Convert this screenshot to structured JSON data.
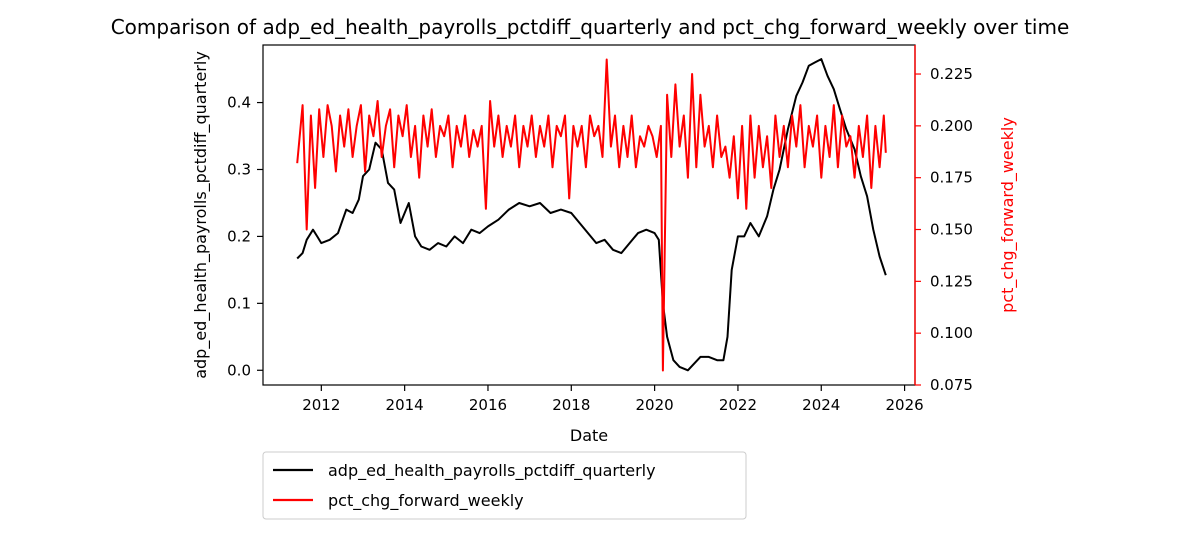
{
  "chart_data": {
    "type": "line",
    "title": "Comparison of adp_ed_health_payrolls_pctdiff_quarterly and pct_chg_forward_weekly over time",
    "xlabel": "Date",
    "ylabel_left": "adp_ed_health_payrolls_pctdiff_quarterly",
    "ylabel_right": "pct_chg_forward_weekly",
    "xlim": [
      2010.6,
      2026.25
    ],
    "ylim_left": [
      -0.022,
      0.486
    ],
    "ylim_right": [
      0.075,
      0.239
    ],
    "x_ticks": [
      2012,
      2014,
      2016,
      2018,
      2020,
      2022,
      2024,
      2026
    ],
    "x_tick_labels": [
      "2012",
      "2014",
      "2016",
      "2018",
      "2020",
      "2022",
      "2024",
      "2026"
    ],
    "y_ticks_left": [
      0.0,
      0.1,
      0.2,
      0.3,
      0.4
    ],
    "y_tick_labels_left": [
      "0.0",
      "0.1",
      "0.2",
      "0.3",
      "0.4"
    ],
    "y_ticks_right": [
      0.075,
      0.1,
      0.125,
      0.15,
      0.175,
      0.2,
      0.225
    ],
    "y_tick_labels_right": [
      "0.075",
      "0.100",
      "0.125",
      "0.150",
      "0.175",
      "0.200",
      "0.225"
    ],
    "legend_placement": "below-left",
    "colors": {
      "left_series": "#000000",
      "right_series": "#ff0000"
    },
    "series": [
      {
        "name": "adp_ed_health_payrolls_pctdiff_quarterly",
        "axis": "left",
        "color": "#000000",
        "x": [
          2011.42,
          2011.55,
          2011.65,
          2011.8,
          2011.9,
          2012.0,
          2012.2,
          2012.4,
          2012.6,
          2012.75,
          2012.9,
          2013.0,
          2013.15,
          2013.3,
          2013.45,
          2013.6,
          2013.75,
          2013.9,
          2014.1,
          2014.25,
          2014.4,
          2014.6,
          2014.8,
          2015.0,
          2015.2,
          2015.4,
          2015.6,
          2015.8,
          2016.0,
          2016.25,
          2016.5,
          2016.75,
          2017.0,
          2017.25,
          2017.5,
          2017.75,
          2018.0,
          2018.2,
          2018.4,
          2018.6,
          2018.8,
          2019.0,
          2019.2,
          2019.4,
          2019.6,
          2019.8,
          2020.0,
          2020.1,
          2020.2,
          2020.3,
          2020.45,
          2020.6,
          2020.8,
          2020.95,
          2021.1,
          2021.3,
          2021.5,
          2021.65,
          2021.75,
          2021.85,
          2022.0,
          2022.15,
          2022.3,
          2022.5,
          2022.7,
          2022.85,
          2023.0,
          2023.2,
          2023.4,
          2023.55,
          2023.7,
          2023.85,
          2024.0,
          2024.15,
          2024.3,
          2024.45,
          2024.6,
          2024.8,
          2024.95,
          2025.1,
          2025.25,
          2025.4,
          2025.55
        ],
        "values": [
          0.167,
          0.175,
          0.195,
          0.21,
          0.2,
          0.19,
          0.195,
          0.205,
          0.24,
          0.235,
          0.255,
          0.29,
          0.3,
          0.34,
          0.33,
          0.28,
          0.27,
          0.22,
          0.25,
          0.2,
          0.185,
          0.18,
          0.19,
          0.185,
          0.2,
          0.19,
          0.21,
          0.205,
          0.215,
          0.225,
          0.24,
          0.25,
          0.245,
          0.25,
          0.235,
          0.24,
          0.235,
          0.22,
          0.205,
          0.19,
          0.195,
          0.18,
          0.175,
          0.19,
          0.205,
          0.21,
          0.205,
          0.195,
          0.1,
          0.05,
          0.015,
          0.005,
          0.0,
          0.01,
          0.02,
          0.02,
          0.015,
          0.015,
          0.05,
          0.15,
          0.2,
          0.2,
          0.22,
          0.2,
          0.23,
          0.27,
          0.3,
          0.36,
          0.41,
          0.43,
          0.455,
          0.46,
          0.465,
          0.44,
          0.42,
          0.39,
          0.36,
          0.33,
          0.29,
          0.26,
          0.21,
          0.17,
          0.142
        ]
      },
      {
        "name": "pct_chg_forward_weekly",
        "axis": "right",
        "color": "#ff0000",
        "x": [
          2011.42,
          2011.55,
          2011.65,
          2011.75,
          2011.85,
          2011.95,
          2012.05,
          2012.15,
          2012.25,
          2012.35,
          2012.45,
          2012.55,
          2012.65,
          2012.75,
          2012.85,
          2012.95,
          2013.05,
          2013.15,
          2013.25,
          2013.35,
          2013.45,
          2013.55,
          2013.65,
          2013.75,
          2013.85,
          2013.95,
          2014.05,
          2014.15,
          2014.25,
          2014.35,
          2014.45,
          2014.55,
          2014.65,
          2014.75,
          2014.85,
          2014.95,
          2015.05,
          2015.15,
          2015.25,
          2015.35,
          2015.45,
          2015.55,
          2015.65,
          2015.75,
          2015.85,
          2015.95,
          2016.05,
          2016.15,
          2016.25,
          2016.35,
          2016.45,
          2016.55,
          2016.65,
          2016.75,
          2016.85,
          2016.95,
          2017.05,
          2017.15,
          2017.25,
          2017.35,
          2017.45,
          2017.55,
          2017.65,
          2017.75,
          2017.85,
          2017.95,
          2018.05,
          2018.15,
          2018.25,
          2018.35,
          2018.45,
          2018.55,
          2018.65,
          2018.75,
          2018.85,
          2018.95,
          2019.05,
          2019.15,
          2019.25,
          2019.35,
          2019.45,
          2019.55,
          2019.65,
          2019.75,
          2019.85,
          2019.95,
          2020.05,
          2020.15,
          2020.2,
          2020.3,
          2020.4,
          2020.5,
          2020.6,
          2020.7,
          2020.8,
          2020.9,
          2021.0,
          2021.1,
          2021.2,
          2021.3,
          2021.4,
          2021.5,
          2021.6,
          2021.7,
          2021.8,
          2021.9,
          2022.0,
          2022.1,
          2022.2,
          2022.3,
          2022.4,
          2022.5,
          2022.6,
          2022.7,
          2022.8,
          2022.9,
          2023.0,
          2023.1,
          2023.2,
          2023.3,
          2023.4,
          2023.5,
          2023.6,
          2023.7,
          2023.8,
          2023.9,
          2024.0,
          2024.1,
          2024.2,
          2024.3,
          2024.4,
          2024.5,
          2024.6,
          2024.7,
          2024.8,
          2024.9,
          2025.0,
          2025.1,
          2025.2,
          2025.3,
          2025.4,
          2025.5,
          2025.55
        ],
        "values": [
          0.182,
          0.21,
          0.15,
          0.205,
          0.17,
          0.208,
          0.185,
          0.21,
          0.2,
          0.178,
          0.205,
          0.19,
          0.208,
          0.185,
          0.2,
          0.21,
          0.178,
          0.205,
          0.195,
          0.212,
          0.185,
          0.2,
          0.208,
          0.18,
          0.205,
          0.195,
          0.21,
          0.185,
          0.2,
          0.175,
          0.205,
          0.19,
          0.208,
          0.185,
          0.2,
          0.195,
          0.205,
          0.18,
          0.2,
          0.19,
          0.205,
          0.185,
          0.198,
          0.19,
          0.2,
          0.16,
          0.212,
          0.19,
          0.205,
          0.185,
          0.2,
          0.19,
          0.205,
          0.18,
          0.2,
          0.19,
          0.205,
          0.185,
          0.2,
          0.19,
          0.205,
          0.18,
          0.2,
          0.195,
          0.205,
          0.165,
          0.2,
          0.19,
          0.2,
          0.18,
          0.205,
          0.195,
          0.2,
          0.185,
          0.232,
          0.19,
          0.205,
          0.18,
          0.2,
          0.185,
          0.205,
          0.18,
          0.195,
          0.19,
          0.2,
          0.195,
          0.185,
          0.2,
          0.082,
          0.215,
          0.185,
          0.22,
          0.19,
          0.205,
          0.175,
          0.225,
          0.18,
          0.215,
          0.19,
          0.2,
          0.18,
          0.205,
          0.185,
          0.19,
          0.175,
          0.195,
          0.165,
          0.2,
          0.16,
          0.205,
          0.175,
          0.2,
          0.18,
          0.195,
          0.17,
          0.205,
          0.185,
          0.2,
          0.18,
          0.205,
          0.19,
          0.21,
          0.18,
          0.2,
          0.19,
          0.205,
          0.175,
          0.2,
          0.185,
          0.21,
          0.18,
          0.205,
          0.19,
          0.195,
          0.175,
          0.2,
          0.185,
          0.205,
          0.17,
          0.2,
          0.18,
          0.205,
          0.187
        ]
      }
    ]
  }
}
